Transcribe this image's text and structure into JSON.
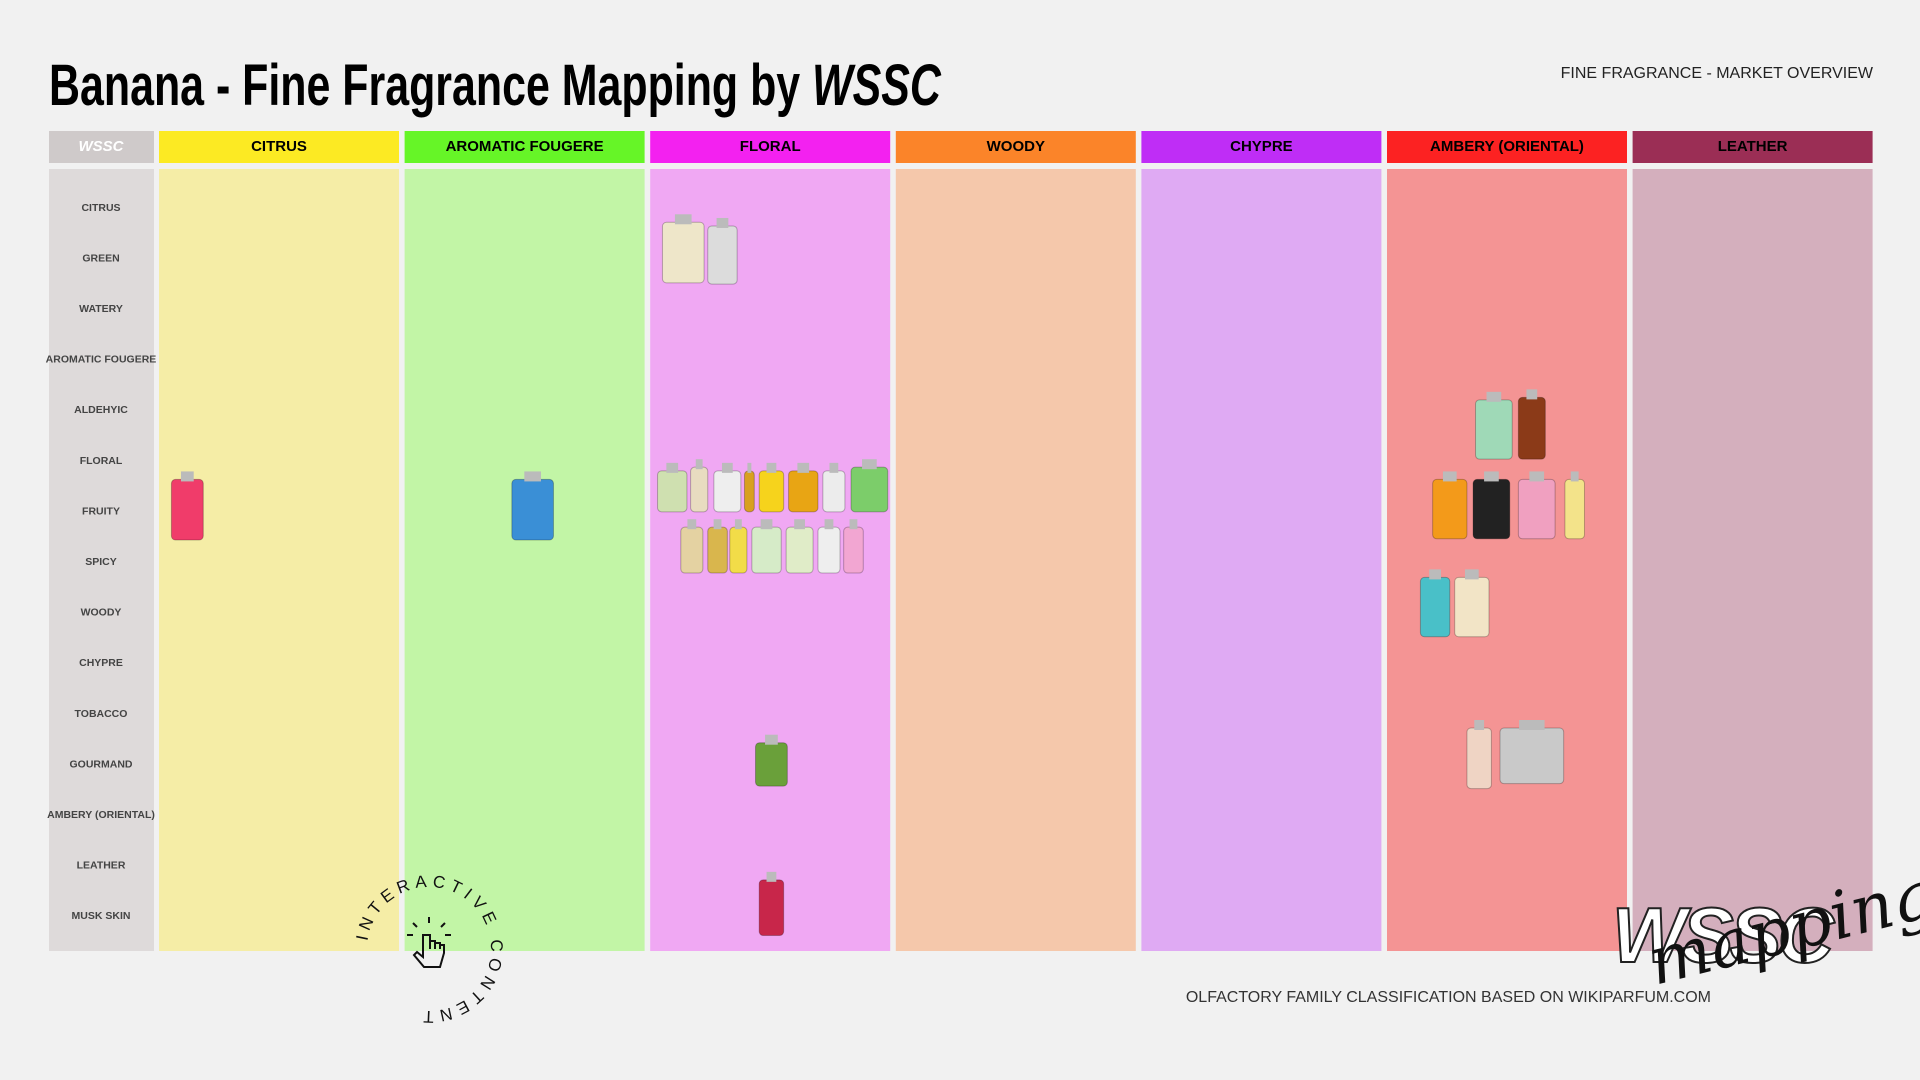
{
  "header": {
    "title": "Banana - Fine Fragrance Mapping by",
    "brand": "WSSC",
    "subtitle": "FINE FRAGRANCE - MARKET OVERVIEW"
  },
  "table": {
    "corner": "WSSC",
    "columns": [
      "CITRUS",
      "AROMATIC FOUGERE",
      "FLORAL",
      "WOODY",
      "CHYPRE",
      "AMBERY (ORIENTAL)",
      "LEATHER"
    ],
    "rows": [
      "CITRUS",
      "GREEN",
      "WATERY",
      "AROMATIC FOUGERE",
      "ALDEHYIC",
      "FLORAL",
      "FRUITY",
      "SPICY",
      "WOODY",
      "CHYPRE",
      "TOBACCO",
      "GOURMAND",
      "AMBERY (ORIENTAL)",
      "LEATHER",
      "MUSK SKIN"
    ]
  },
  "badge": "INTERACTIVE CONTENT",
  "footer": {
    "note": "OLFACTORY FAMILY CLASSIFICATION BASED ON WIKIPARFUM.COM"
  },
  "logo": {
    "brand": "WSSC",
    "script": "mapping"
  }
}
